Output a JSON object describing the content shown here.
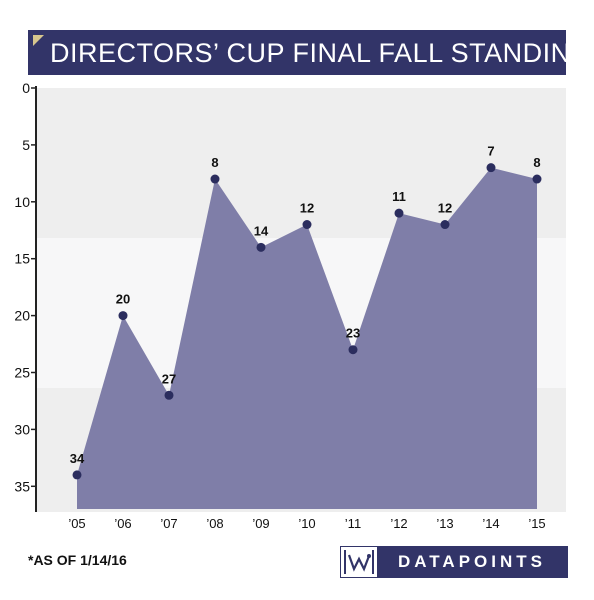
{
  "title": "DIRECTORS’ CUP FINAL FALL STANDINGS",
  "footnote": "*AS OF 1/14/16",
  "logo_text": "DATAPOINTS",
  "colors": {
    "accent": "#323468",
    "area_fill": "#7f7ea8",
    "point": "#2b2d5e",
    "corner": "#d6c68e"
  },
  "chart_data": {
    "type": "area",
    "title": "DIRECTORS’ CUP FINAL FALL STANDINGS",
    "xlabel": "",
    "ylabel": "",
    "categories": [
      "’05",
      "’06",
      "’07",
      "’08",
      "’09",
      "’10",
      "’11",
      "’12",
      "’13",
      "’14",
      "’15"
    ],
    "values": [
      34,
      20,
      27,
      8,
      14,
      12,
      23,
      11,
      12,
      7,
      8
    ],
    "data_labels": [
      "34",
      "20",
      "27",
      "8",
      "14",
      "12",
      "23",
      "11",
      "12",
      "7",
      "8"
    ],
    "y_ticks": [
      0,
      5,
      10,
      15,
      20,
      25,
      30,
      35
    ],
    "ylim": [
      0,
      37
    ],
    "y_inverted": true,
    "grid": false,
    "legend": "none"
  }
}
